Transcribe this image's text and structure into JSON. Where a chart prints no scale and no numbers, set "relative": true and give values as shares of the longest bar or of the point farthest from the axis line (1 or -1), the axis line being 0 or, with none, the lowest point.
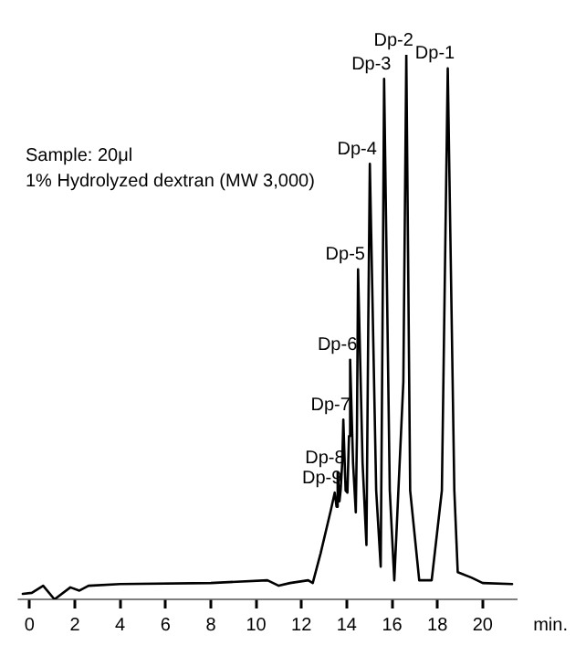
{
  "chart_data": {
    "type": "line",
    "relative": true,
    "xlabel": "min.",
    "xlim": [
      -0.5,
      21.5
    ],
    "xticks": [
      0,
      2,
      4,
      6,
      8,
      10,
      12,
      14,
      16,
      18,
      20
    ],
    "grid": false,
    "legend": false,
    "marker": "none",
    "line_style": "solid",
    "x": [
      -0.3,
      0.1,
      0.6,
      1.1,
      1.8,
      2.2,
      2.6,
      4,
      8,
      10.5,
      11,
      11.5,
      12.3,
      12.5,
      12.85,
      13.3,
      13.47,
      13.55,
      13.6,
      13.68,
      13.73,
      13.8,
      13.85,
      13.95,
      14.03,
      14.1,
      14.15,
      14.28,
      14.4,
      14.45,
      14.5,
      14.7,
      14.87,
      14.95,
      15.02,
      15.3,
      15.5,
      15.58,
      15.65,
      15.9,
      16.1,
      16.5,
      16.63,
      16.8,
      17.2,
      17.75,
      18.2,
      18.46,
      18.75,
      18.9,
      19.5,
      20,
      21.3
    ],
    "series": [
      {
        "color": "#000000",
        "values": [
          0.01,
          0.012,
          0.025,
          0,
          0.022,
          0.016,
          0.025,
          0.028,
          0.03,
          0.035,
          0.025,
          0.03,
          0.035,
          0.03,
          0.085,
          0.164,
          0.196,
          0.17,
          0.233,
          0.18,
          0.2,
          0.25,
          0.33,
          0.2,
          0.196,
          0.3,
          0.44,
          0.25,
          0.16,
          0.3,
          0.606,
          0.25,
          0.1,
          0.5,
          0.8,
          0.2,
          0.06,
          0.5,
          0.956,
          0.2,
          0.035,
          0.4,
          1.0,
          0.2,
          0.035,
          0.035,
          0.2,
          0.975,
          0.2,
          0.05,
          0.04,
          0.03,
          0.028
        ]
      }
    ],
    "annotations": [
      "Sample: 20μl",
      "1% Hydrolyzed dextran (MW 3,000)",
      {
        "text": "Dp-1",
        "x": 18.46,
        "y": 0.975
      },
      {
        "text": "Dp-2",
        "x": 16.63,
        "y": 1.0
      },
      {
        "text": "Dp-3",
        "x": 15.65,
        "y": 0.956
      },
      {
        "text": "Dp-4",
        "x": 15.02,
        "y": 0.8
      },
      {
        "text": "Dp-5",
        "x": 14.5,
        "y": 0.606
      },
      {
        "text": "Dp-6",
        "x": 14.15,
        "y": 0.44
      },
      {
        "text": "Dp-7",
        "x": 13.85,
        "y": 0.33
      },
      {
        "text": "Dp-8",
        "x": 13.6,
        "y": 0.233
      },
      {
        "text": "Dp-9",
        "x": 13.47,
        "y": 0.196
      }
    ]
  }
}
